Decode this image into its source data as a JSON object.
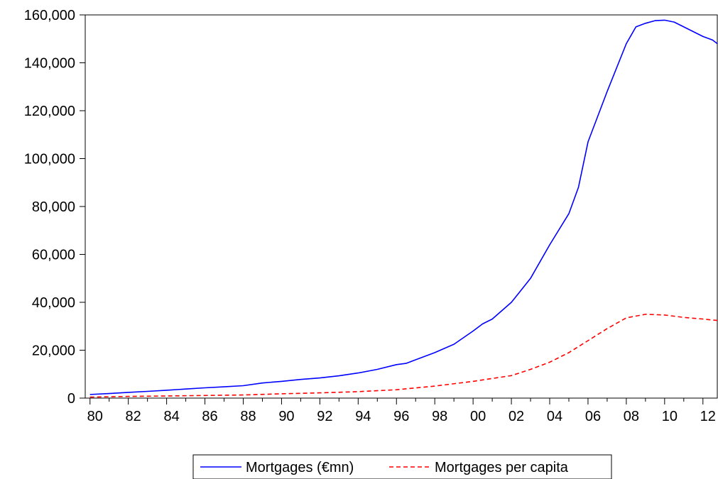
{
  "chart_data": {
    "type": "line",
    "title": "",
    "xlabel": "",
    "ylabel": "",
    "x_tick_labels": [
      "80",
      "82",
      "84",
      "86",
      "88",
      "90",
      "92",
      "94",
      "96",
      "98",
      "00",
      "02",
      "04",
      "06",
      "08",
      "10",
      "12"
    ],
    "x_tick_years": [
      1980,
      1982,
      1984,
      1986,
      1988,
      1990,
      1992,
      1994,
      1996,
      1998,
      2000,
      2002,
      2004,
      2006,
      2008,
      2010,
      2012
    ],
    "xlim": [
      1979.75,
      2012.75
    ],
    "ylim": [
      0,
      160000
    ],
    "y_ticks": [
      0,
      20000,
      40000,
      60000,
      80000,
      100000,
      120000,
      140000,
      160000
    ],
    "y_tick_labels": [
      "0",
      "20,000",
      "40,000",
      "60,000",
      "80,000",
      "100,000",
      "120,000",
      "140,000",
      "160,000"
    ],
    "grid": false,
    "legend_position": "bottom-center",
    "series": [
      {
        "name": "Mortgages (€mn)",
        "color": "#0000ff",
        "style": "solid",
        "x": [
          1980,
          1981,
          1982,
          1983,
          1984,
          1985,
          1986,
          1987,
          1988,
          1989,
          1990,
          1991,
          1992,
          1993,
          1994,
          1995,
          1996,
          1996.5,
          1997,
          1998,
          1999,
          2000,
          2000.5,
          2001,
          2002,
          2002.5,
          2003,
          2004,
          2005,
          2005.5,
          2006,
          2007,
          2008,
          2008.5,
          2009,
          2009.5,
          2010,
          2010.5,
          2011,
          2011.5,
          2012,
          2012.5,
          2012.75
        ],
        "values": [
          1500,
          1900,
          2400,
          2800,
          3300,
          3800,
          4300,
          4700,
          5200,
          6300,
          7000,
          7800,
          8400,
          9300,
          10500,
          12000,
          14000,
          14500,
          16000,
          19000,
          22500,
          28000,
          31000,
          33000,
          40000,
          45000,
          50000,
          64000,
          77000,
          88000,
          107000,
          128000,
          148000,
          155000,
          156500,
          157600,
          157800,
          157000,
          155000,
          153000,
          151000,
          149500,
          148000
        ]
      },
      {
        "name": "Mortgages per capita",
        "color": "#ff0000",
        "style": "dashed",
        "x": [
          1980,
          1982,
          1984,
          1986,
          1988,
          1990,
          1992,
          1994,
          1996,
          1998,
          2000,
          2002,
          2003,
          2004,
          2005,
          2006,
          2007,
          2008,
          2009,
          2010,
          2011,
          2012,
          2012.75
        ],
        "values": [
          400,
          700,
          900,
          1100,
          1300,
          1800,
          2200,
          2700,
          3500,
          5000,
          7000,
          9400,
          12000,
          15000,
          19000,
          24000,
          29000,
          33500,
          35000,
          34700,
          33700,
          33000,
          32400
        ]
      }
    ]
  }
}
